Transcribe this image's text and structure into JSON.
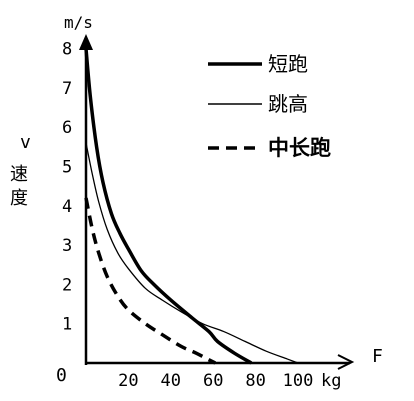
{
  "chart_data": {
    "type": "line",
    "y_unit": "m/s",
    "ylabel_symbol": "v",
    "ylabel_chars": [
      "速",
      "度"
    ],
    "xlabel": "F",
    "x_unit": "kg",
    "origin_label": "0",
    "xlim": [
      0,
      100
    ],
    "ylim": [
      0,
      8
    ],
    "x_ticks": [
      20,
      40,
      60,
      80,
      100
    ],
    "y_ticks": [
      1,
      2,
      3,
      4,
      5,
      6,
      7,
      8
    ],
    "grid": false,
    "legend_position": "top-right",
    "series": [
      {
        "name": "短跑",
        "style": "thick-solid",
        "x": [
          0,
          2,
          5,
          8,
          12,
          16,
          20,
          26,
          32,
          40,
          50,
          58,
          62,
          70,
          78
        ],
        "y": [
          8.0,
          6.8,
          5.5,
          4.6,
          3.8,
          3.3,
          2.9,
          2.35,
          2.0,
          1.6,
          1.15,
          0.8,
          0.55,
          0.25,
          0.0
        ]
      },
      {
        "name": "跳高",
        "style": "thin-solid",
        "x": [
          0,
          3,
          6,
          10,
          15,
          20,
          28,
          36,
          45,
          55,
          65,
          75,
          85,
          95,
          100
        ],
        "y": [
          5.6,
          4.8,
          4.1,
          3.4,
          2.8,
          2.4,
          1.9,
          1.6,
          1.3,
          1.0,
          0.8,
          0.55,
          0.3,
          0.1,
          0.0
        ]
      },
      {
        "name": "中长跑",
        "style": "thick-dashed",
        "x": [
          0,
          3,
          6,
          10,
          15,
          20,
          28,
          36,
          45,
          52,
          58,
          61
        ],
        "y": [
          4.2,
          3.4,
          2.8,
          2.2,
          1.7,
          1.35,
          1.0,
          0.72,
          0.42,
          0.25,
          0.08,
          0.0
        ]
      }
    ]
  }
}
